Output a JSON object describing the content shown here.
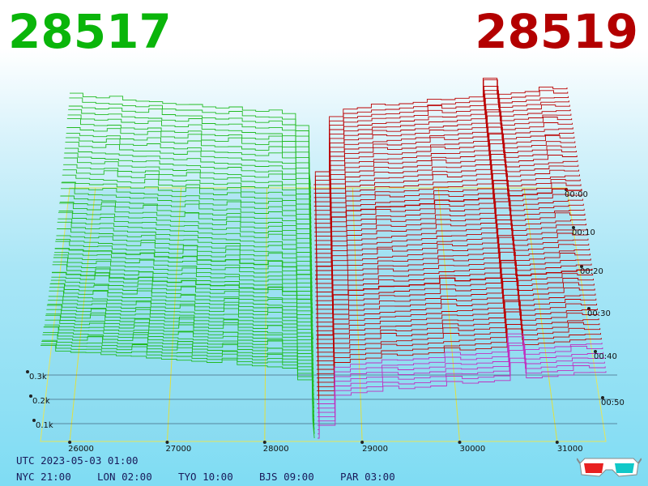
{
  "header": {
    "bid_price": "28517",
    "ask_price": "28519",
    "bid_color": "#0ab50a",
    "ask_color": "#b30000"
  },
  "footer": {
    "utc_label": "UTC 2023-05-03 01:00",
    "cities": [
      {
        "label": "NYC 21:00"
      },
      {
        "label": "LON 02:00"
      },
      {
        "label": "TYO 10:00"
      },
      {
        "label": "BJS 09:00"
      },
      {
        "label": "PAR 03:00"
      }
    ],
    "glasses_icon": "3d-glasses-icon"
  },
  "chart_data": {
    "type": "3d-depth-surface",
    "x_axis": {
      "ticks": [
        "26000",
        "27000",
        "28000",
        "29000",
        "30000",
        "31000"
      ],
      "tick_values": [
        26000,
        27000,
        28000,
        29000,
        30000,
        31000
      ],
      "range": [
        25700,
        31500
      ]
    },
    "volume_axis": {
      "ticks": [
        "0.1k",
        "0.2k",
        "0.3k"
      ],
      "tick_values": [
        100,
        200,
        300
      ]
    },
    "time_axis": {
      "ticks": [
        "00:00",
        "00:10",
        "00:20",
        "00:30",
        "00:40",
        "00:50"
      ],
      "tick_minutes": [
        0,
        10,
        20,
        30,
        40,
        50
      ]
    },
    "mid_price": 28518,
    "series": [
      {
        "name": "bids",
        "color": "#22bb22"
      },
      {
        "name": "asks",
        "color": "#bb0000"
      }
    ],
    "snapshots": 60
  }
}
